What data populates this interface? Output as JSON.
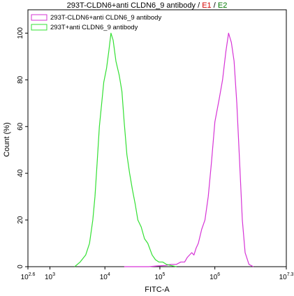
{
  "chart_data": {
    "type": "line",
    "title": "293T-CLDN6+anti CLDN6_9 antibody",
    "title_gates": [
      {
        "label": "E1",
        "color": "#d40000"
      },
      {
        "label": "E2",
        "color": "#007a00"
      }
    ],
    "title_separator": "/",
    "xlabel": "FITC-A",
    "ylabel": "Count (%)",
    "x_scale": "log10",
    "xlim": [
      2.6,
      7.3
    ],
    "ylim": [
      0,
      110
    ],
    "x_ticks": [
      {
        "exp": 2.6,
        "base": "10",
        "sup": "2.6"
      },
      {
        "exp": 3,
        "base": "10",
        "sup": "3"
      },
      {
        "exp": 4,
        "base": "10",
        "sup": "4"
      },
      {
        "exp": 5,
        "base": "10",
        "sup": "5"
      },
      {
        "exp": 6,
        "base": "10",
        "sup": "6"
      },
      {
        "exp": 7.3,
        "base": "10",
        "sup": "7.3"
      }
    ],
    "y_ticks": [
      0,
      20,
      40,
      60,
      80,
      100
    ],
    "grid": false,
    "legend_position": "top-left",
    "series": [
      {
        "name": "293T-CLDN6+anti CLDN6_9 antibody",
        "color": "#d633d6",
        "points": [
          [
            4.35,
            0
          ],
          [
            4.6,
            0
          ],
          [
            4.8,
            0
          ],
          [
            4.95,
            0.3
          ],
          [
            5.1,
            0.5
          ],
          [
            5.2,
            1
          ],
          [
            5.3,
            1
          ],
          [
            5.38,
            2
          ],
          [
            5.45,
            2
          ],
          [
            5.5,
            4
          ],
          [
            5.58,
            6
          ],
          [
            5.62,
            5
          ],
          [
            5.66,
            8
          ],
          [
            5.7,
            10
          ],
          [
            5.76,
            16
          ],
          [
            5.82,
            20
          ],
          [
            5.88,
            30
          ],
          [
            5.94,
            45
          ],
          [
            6.0,
            62
          ],
          [
            6.08,
            72
          ],
          [
            6.14,
            80
          ],
          [
            6.2,
            92
          ],
          [
            6.25,
            100
          ],
          [
            6.3,
            96
          ],
          [
            6.35,
            88
          ],
          [
            6.4,
            70
          ],
          [
            6.45,
            45
          ],
          [
            6.5,
            20
          ],
          [
            6.55,
            6
          ],
          [
            6.62,
            1
          ],
          [
            6.7,
            0
          ]
        ]
      },
      {
        "name": "293T+anti CLDN6_9 antibody",
        "color": "#33e033",
        "points": [
          [
            3.45,
            0
          ],
          [
            3.55,
            2
          ],
          [
            3.65,
            5
          ],
          [
            3.72,
            10
          ],
          [
            3.78,
            20
          ],
          [
            3.82,
            30
          ],
          [
            3.86,
            45
          ],
          [
            3.9,
            60
          ],
          [
            3.95,
            72
          ],
          [
            3.98,
            79
          ],
          [
            4.03,
            85
          ],
          [
            4.07,
            92
          ],
          [
            4.11,
            100
          ],
          [
            4.15,
            97
          ],
          [
            4.2,
            88
          ],
          [
            4.26,
            82
          ],
          [
            4.31,
            75
          ],
          [
            4.35,
            62
          ],
          [
            4.4,
            48
          ],
          [
            4.45,
            40
          ],
          [
            4.5,
            33
          ],
          [
            4.55,
            27
          ],
          [
            4.6,
            20
          ],
          [
            4.66,
            17
          ],
          [
            4.72,
            12
          ],
          [
            4.78,
            10
          ],
          [
            4.86,
            5
          ],
          [
            4.92,
            3
          ],
          [
            4.98,
            2
          ],
          [
            5.05,
            2
          ],
          [
            5.12,
            1
          ],
          [
            5.2,
            0.5
          ],
          [
            5.3,
            0
          ]
        ]
      }
    ]
  }
}
